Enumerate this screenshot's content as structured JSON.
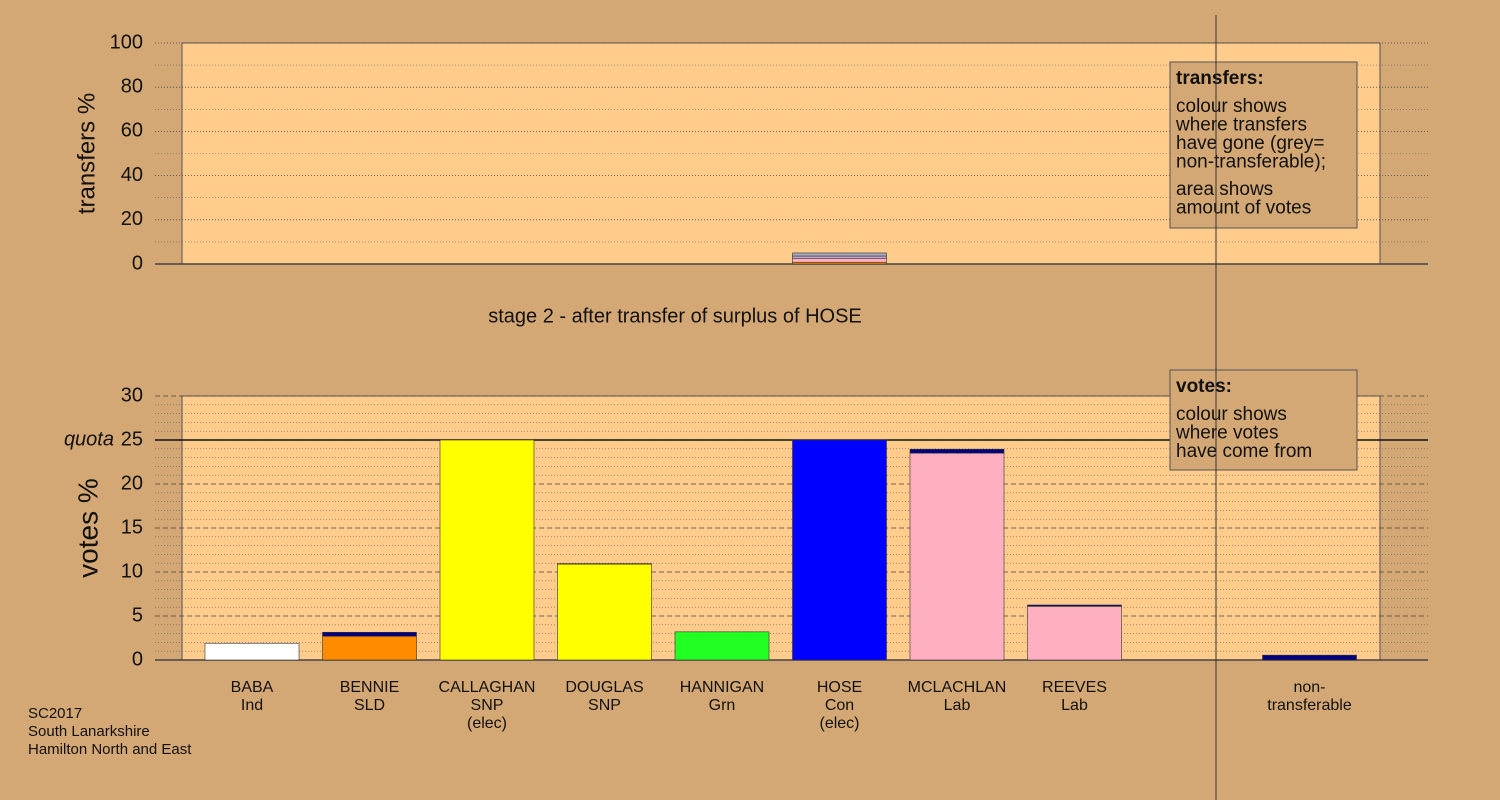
{
  "chart_data": [
    {
      "type": "bar",
      "stacked": true,
      "ylabel": "transfers %",
      "ylim": [
        0,
        100
      ],
      "yticks": [
        0,
        20,
        40,
        60,
        80,
        100
      ],
      "minor_yticks": [
        10,
        30,
        50,
        70,
        90
      ],
      "grid": true,
      "series": [
        {
          "color": "#ff8c00",
          "values": [
            null,
            null,
            null,
            null,
            null,
            0.8,
            null,
            null,
            null
          ]
        },
        {
          "color": "#ffb0c0",
          "values": [
            null,
            null,
            null,
            null,
            null,
            1.6,
            null,
            null,
            null
          ]
        },
        {
          "color": "#c4a8d0",
          "values": [
            null,
            null,
            null,
            null,
            null,
            1.2,
            null,
            null,
            null
          ]
        },
        {
          "color": "#a8a8b8",
          "values": [
            null,
            null,
            null,
            null,
            null,
            1.4,
            null,
            null,
            null
          ]
        }
      ],
      "annotation": {
        "title": "transfers:",
        "paragraphs": [
          [
            "colour shows",
            "where transfers",
            "have gone (grey=",
            "non-transferable);"
          ],
          [
            "area shows",
            "amount of votes"
          ]
        ]
      }
    },
    {
      "type": "bar",
      "stacked": true,
      "ylabel": "votes %",
      "ylim": [
        0,
        30
      ],
      "yticks": [
        0,
        5,
        10,
        15,
        20,
        25,
        30
      ],
      "minor_yticks": [
        1,
        2,
        3,
        4,
        6,
        7,
        8,
        9,
        11,
        12,
        13,
        14,
        16,
        17,
        18,
        19,
        21,
        22,
        23,
        24,
        26,
        27,
        28,
        29
      ],
      "grid": true,
      "quota": {
        "label": "quota",
        "value": 25
      },
      "categories": [
        [
          "BABA",
          "Ind"
        ],
        [
          "BENNIE",
          "SLD"
        ],
        [
          "CALLAGHAN",
          "SNP",
          "(elec)"
        ],
        [
          "DOUGLAS",
          "SNP"
        ],
        [
          "HANNIGAN",
          "Grn"
        ],
        [
          "HOSE",
          "Con",
          "(elec)"
        ],
        [
          "MCLACHLAN",
          "Lab"
        ],
        [
          "REEVES",
          "Lab"
        ],
        [
          "non-",
          "transferable"
        ]
      ],
      "series": [
        {
          "colors": [
            "#ffffff",
            "#ff8c00",
            "#ffff00",
            "#ffff00",
            "#22ff22",
            "#0000ff",
            "#ffb0c0",
            "#ffb0c0",
            null
          ],
          "values": [
            1.9,
            2.7,
            25,
            10.9,
            3.2,
            25,
            23.5,
            6.1,
            null
          ]
        },
        {
          "color": "#000080",
          "values": [
            null,
            0.45,
            null,
            0.05,
            null,
            null,
            0.45,
            0.15,
            0.55
          ]
        }
      ],
      "annotation": {
        "title": "votes:",
        "paragraphs": [
          [
            "colour shows",
            "where votes",
            "have come from"
          ]
        ]
      }
    }
  ],
  "title": "stage 2 - after transfer of surplus of HOSE",
  "footer": [
    "SC2017",
    "South Lanarkshire",
    "Hamilton North and East"
  ]
}
